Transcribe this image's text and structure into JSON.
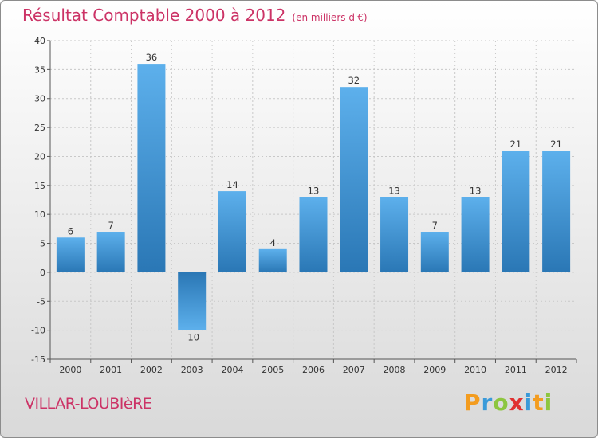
{
  "header": {
    "title": "Résultat Comptable 2000 à 2012",
    "unit": "(en milliers d'€)"
  },
  "footer": {
    "commune": "VILLAR-LOUBIèRE",
    "logo": {
      "text": "Proxiti",
      "letters": [
        {
          "char": "P",
          "color": "#f39c1f"
        },
        {
          "char": "r",
          "color": "#3a9ad9"
        },
        {
          "char": "o",
          "color": "#8dc63f"
        },
        {
          "char": "x",
          "color": "#e03030"
        },
        {
          "char": "i",
          "color": "#3a9ad9"
        },
        {
          "char": "t",
          "color": "#f39c1f"
        },
        {
          "char": "i",
          "color": "#8dc63f"
        }
      ]
    }
  },
  "colors": {
    "title": "#cc3366",
    "bar_top": "#5db0ec",
    "bar_bottom": "#2a77b5"
  },
  "chart_data": {
    "type": "bar",
    "title": "Résultat Comptable 2000 à 2012",
    "subtitle": "(en milliers d'€)",
    "xlabel": "",
    "ylabel": "",
    "categories": [
      "2000",
      "2001",
      "2002",
      "2003",
      "2004",
      "2005",
      "2006",
      "2007",
      "2008",
      "2009",
      "2010",
      "2011",
      "2012"
    ],
    "values": [
      6,
      7,
      36,
      -10,
      14,
      4,
      13,
      32,
      13,
      7,
      13,
      21,
      21
    ],
    "ylim": [
      -15,
      40
    ],
    "yticks": [
      -15,
      -10,
      -5,
      0,
      5,
      10,
      15,
      20,
      25,
      30,
      35,
      40
    ],
    "grid": true,
    "legend": "none"
  }
}
